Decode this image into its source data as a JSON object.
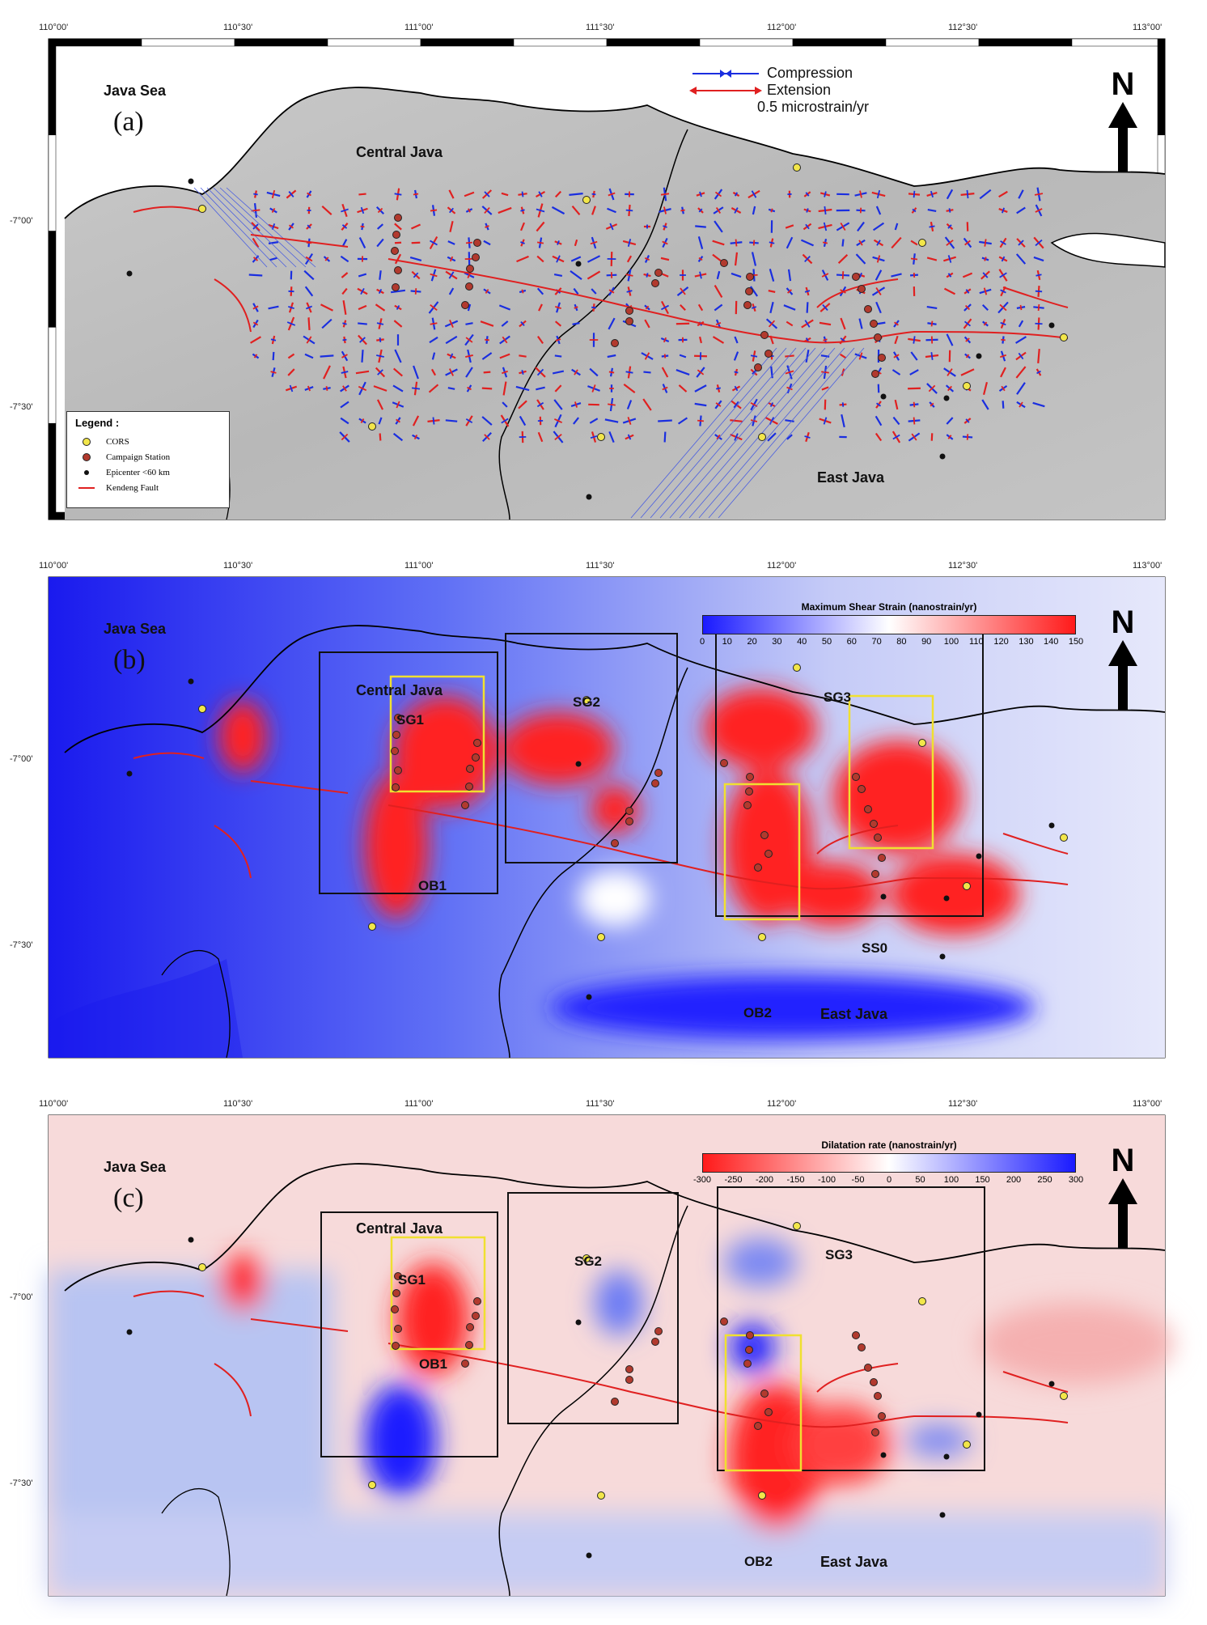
{
  "lon_ticks": [
    "110°00'",
    "110°30'",
    "111°00'",
    "111°30'",
    "112°00'",
    "112°30'",
    "113°00'"
  ],
  "lat_ticks": [
    "-7°00'",
    "-7°30'"
  ],
  "colors": {
    "cors": "#f2e64a",
    "campaign": "#b23a2e",
    "epicenter": "#111111",
    "fault": "#e02020",
    "box_sg": "#111111",
    "box_ob": "#f0e030"
  },
  "panels": [
    {
      "id": "a",
      "title": "(a)",
      "labels": {
        "sea": "Java Sea",
        "central": "Central Java",
        "east": "East Java"
      },
      "north": "N",
      "arrow_legend": {
        "compression": "Compression",
        "extension": "Extension",
        "scale": "0.5 microstrain/yr"
      },
      "legend": {
        "title": "Legend :",
        "items": [
          {
            "label": "CORS",
            "symbol": "cors"
          },
          {
            "label": "Campaign Station",
            "symbol": "campaign"
          },
          {
            "label": "Epicenter <60 km",
            "symbol": "epicenter"
          },
          {
            "label": "Kendeng Fault",
            "symbol": "fault"
          }
        ]
      }
    },
    {
      "id": "b",
      "title": "(b)",
      "labels": {
        "sea": "Java Sea",
        "central": "Central Java",
        "east": "East Java"
      },
      "north": "N",
      "colorbar": {
        "title": "Maximum Shear Strain (nanostrain/yr)",
        "ticks": [
          "0",
          "10",
          "20",
          "30",
          "40",
          "50",
          "60",
          "70",
          "80",
          "90",
          "100",
          "110",
          "120",
          "130",
          "140",
          "150"
        ],
        "colors": [
          "#1a1aff",
          "#ffffff",
          "#ff1a1a"
        ]
      },
      "boxes": {
        "sg1": "SG1",
        "sg2": "SG2",
        "sg3": "SG3",
        "ob1": "OB1",
        "ob2": "OB2",
        "ss0": "SS0"
      }
    },
    {
      "id": "c",
      "title": "(c)",
      "labels": {
        "sea": "Java Sea",
        "central": "Central Java",
        "east": "East Java"
      },
      "north": "N",
      "colorbar": {
        "title": "Dilatation rate (nanostrain/yr)",
        "ticks": [
          "-300",
          "-250",
          "-200",
          "-150",
          "-100",
          "-50",
          "0",
          "50",
          "100",
          "150",
          "200",
          "250",
          "300"
        ],
        "colors": [
          "#ff1a1a",
          "#ffffff",
          "#1a1aff"
        ]
      },
      "boxes": {
        "sg1": "SG1",
        "sg2": "SG2",
        "sg3": "SG3",
        "ob1": "OB1",
        "ob2": "OB2"
      }
    }
  ]
}
